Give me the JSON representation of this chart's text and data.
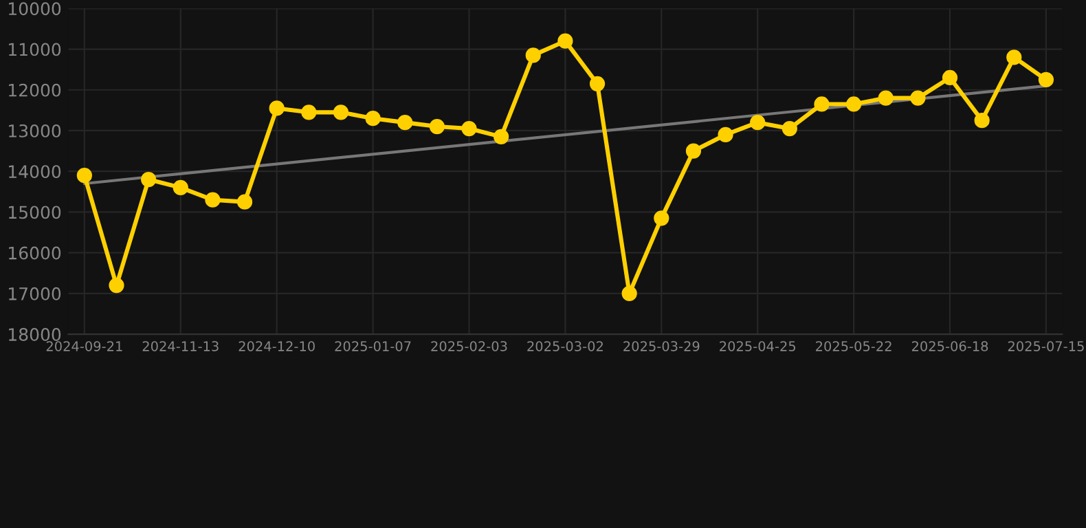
{
  "chart_data": {
    "type": "line",
    "categories": [
      "2024-09-21",
      null,
      null,
      "2024-11-13",
      null,
      null,
      "2024-12-10",
      null,
      null,
      "2025-01-07",
      null,
      null,
      "2025-02-03",
      null,
      null,
      "2025-03-02",
      null,
      null,
      "2025-03-29",
      null,
      null,
      "2025-04-25",
      null,
      null,
      "2025-05-22",
      null,
      null,
      "2025-06-18",
      null,
      null,
      "2025-07-15"
    ],
    "series": [
      {
        "color": "#ffd000",
        "marker": "circle",
        "values": [
          14100,
          16800,
          14200,
          14400,
          14700,
          14750,
          12450,
          12550,
          12550,
          12700,
          12800,
          12900,
          12950,
          13150,
          11150,
          10800,
          11850,
          17000,
          15150,
          13500,
          13100,
          12800,
          12950,
          12350,
          12350,
          12200,
          12200,
          11700,
          12750,
          11200,
          11750
        ]
      },
      {
        "color": "#777777",
        "marker": "none",
        "values": [
          14300,
          null,
          null,
          null,
          null,
          null,
          null,
          null,
          null,
          null,
          null,
          null,
          null,
          null,
          null,
          null,
          null,
          null,
          null,
          null,
          null,
          null,
          null,
          null,
          null,
          null,
          null,
          null,
          null,
          null,
          11900
        ]
      }
    ],
    "ylim": [
      18000,
      10000
    ],
    "yticks": [
      10000,
      11000,
      12000,
      13000,
      14000,
      15000,
      16000,
      17000,
      18000
    ],
    "grid": true
  }
}
